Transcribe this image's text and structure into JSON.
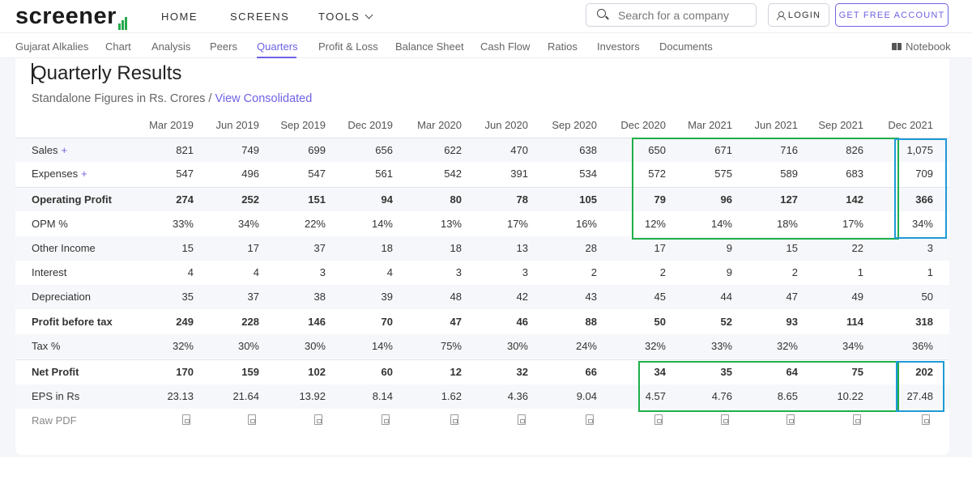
{
  "header": {
    "logo": "screener",
    "nav": [
      "HOME",
      "SCREENS",
      "TOOLS"
    ],
    "search_placeholder": "Search for a company",
    "login_label": "LOGIN",
    "signup_label": "GET FREE ACCOUNT"
  },
  "subnav": {
    "items": [
      "Gujarat Alkalies",
      "Chart",
      "Analysis",
      "Peers",
      "Quarters",
      "Profit & Loss",
      "Balance Sheet",
      "Cash Flow",
      "Ratios",
      "Investors",
      "Documents"
    ],
    "active": "Quarters",
    "notebook_label": "Notebook"
  },
  "section": {
    "title": "Quarterly Results",
    "subtitle": "Standalone Figures in Rs. Crores /",
    "subtitle_link": "View Consolidated"
  },
  "table": {
    "columns": [
      "Mar 2019",
      "Jun 2019",
      "Sep 2019",
      "Dec 2019",
      "Mar 2020",
      "Jun 2020",
      "Sep 2020",
      "Dec 2020",
      "Mar 2021",
      "Jun 2021",
      "Sep 2021",
      "Dec 2021"
    ],
    "rows": [
      {
        "label": "Sales",
        "plus": "+",
        "bold": false,
        "values": [
          "821",
          "749",
          "699",
          "656",
          "622",
          "470",
          "638",
          "650",
          "671",
          "716",
          "826",
          "1,075"
        ]
      },
      {
        "label": "Expenses",
        "plus": "+",
        "bold": false,
        "values": [
          "547",
          "496",
          "547",
          "561",
          "542",
          "391",
          "534",
          "572",
          "575",
          "589",
          "683",
          "709"
        ]
      },
      {
        "label": "Operating Profit",
        "plus": "",
        "bold": true,
        "values": [
          "274",
          "252",
          "151",
          "94",
          "80",
          "78",
          "105",
          "79",
          "96",
          "127",
          "142",
          "366"
        ]
      },
      {
        "label": "OPM %",
        "plus": "",
        "bold": false,
        "values": [
          "33%",
          "34%",
          "22%",
          "14%",
          "13%",
          "17%",
          "16%",
          "12%",
          "14%",
          "18%",
          "17%",
          "34%"
        ]
      },
      {
        "label": "Other Income",
        "plus": "",
        "bold": false,
        "values": [
          "15",
          "17",
          "37",
          "18",
          "18",
          "13",
          "28",
          "17",
          "9",
          "15",
          "22",
          "3"
        ]
      },
      {
        "label": "Interest",
        "plus": "",
        "bold": false,
        "values": [
          "4",
          "4",
          "3",
          "4",
          "3",
          "3",
          "2",
          "2",
          "9",
          "2",
          "1",
          "1"
        ]
      },
      {
        "label": "Depreciation",
        "plus": "",
        "bold": false,
        "values": [
          "35",
          "37",
          "38",
          "39",
          "48",
          "42",
          "43",
          "45",
          "44",
          "47",
          "49",
          "50"
        ]
      },
      {
        "label": "Profit before tax",
        "plus": "",
        "bold": true,
        "values": [
          "249",
          "228",
          "146",
          "70",
          "47",
          "46",
          "88",
          "50",
          "52",
          "93",
          "114",
          "318"
        ]
      },
      {
        "label": "Tax %",
        "plus": "",
        "bold": false,
        "values": [
          "32%",
          "30%",
          "30%",
          "14%",
          "75%",
          "30%",
          "24%",
          "32%",
          "33%",
          "32%",
          "34%",
          "36%"
        ]
      },
      {
        "label": "Net Profit",
        "plus": "",
        "bold": true,
        "values": [
          "170",
          "159",
          "102",
          "60",
          "12",
          "32",
          "66",
          "34",
          "35",
          "64",
          "75",
          "202"
        ]
      },
      {
        "label": "EPS in Rs",
        "plus": "",
        "bold": false,
        "values": [
          "23.13",
          "21.64",
          "13.92",
          "8.14",
          "1.62",
          "4.36",
          "9.04",
          "4.57",
          "4.76",
          "8.65",
          "10.22",
          "27.48"
        ]
      }
    ],
    "raw_pdf_label": "Raw PDF"
  },
  "highlight_colors": {
    "green": "#1fae4b",
    "blue": "#1e9ad6"
  }
}
